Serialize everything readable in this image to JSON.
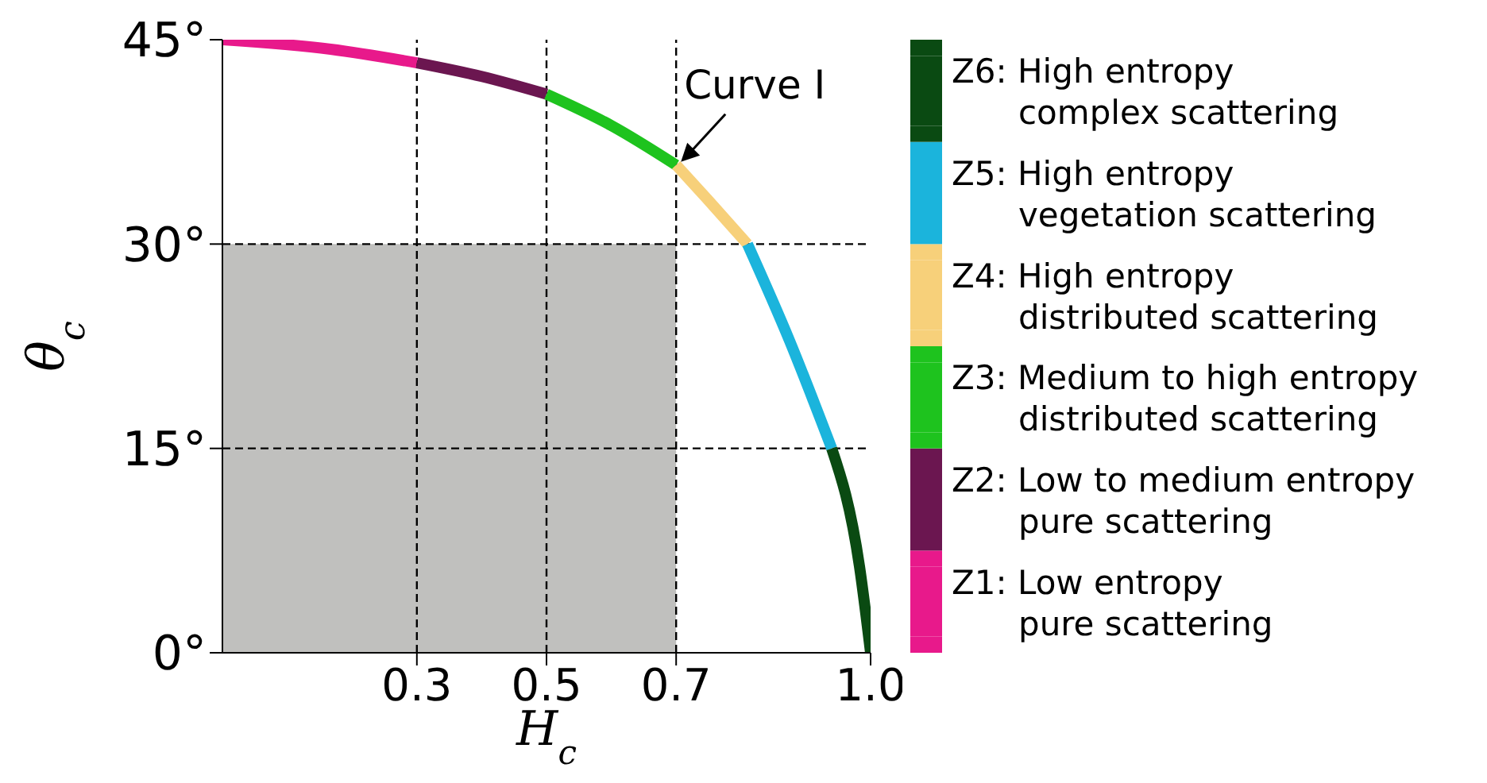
{
  "chart_data": {
    "type": "line",
    "xlabel": "H$_{c}$",
    "ylabel": "θ$_{c}$",
    "xlim": [
      0,
      1
    ],
    "ylim": [
      0,
      45
    ],
    "xticks": [
      0.3,
      0.5,
      0.7,
      {
        "value": 1,
        "label": "1.0"
      }
    ],
    "yticks": [
      {
        "value": 0,
        "label": "0°"
      },
      {
        "value": 15,
        "label": "15°"
      },
      {
        "value": 30,
        "label": "30°"
      },
      {
        "value": 45,
        "label": "45°"
      }
    ],
    "legend": "right",
    "series": [
      {
        "name": "Z1: Low entropy\npure scattering",
        "color": "#e8198b",
        "x": [
          0,
          0.167,
          0.3
        ],
        "values": [
          45,
          44.3,
          43.3
        ]
      },
      {
        "name": "Z2: Low to medium entropy\npure scattering",
        "color": "#6b1650",
        "x": [
          0.3,
          0.4,
          0.5
        ],
        "values": [
          43.3,
          42.3,
          41.0
        ]
      },
      {
        "name": "Z3: Medium to high entropy\ndistributed scattering",
        "color": "#1ec31e",
        "x": [
          0.5,
          0.6,
          0.7
        ],
        "values": [
          41.0,
          38.7,
          35.8
        ]
      },
      {
        "name": "Z4: High entropy\ndistributed scattering",
        "color": "#f7d07a",
        "x": [
          0.7,
          0.75,
          0.81
        ],
        "values": [
          35.8,
          33.2,
          30
        ]
      },
      {
        "name": "Z5: High entropy\nvegetation scattering",
        "color": "#1bb4dc",
        "x": [
          0.81,
          0.875,
          0.94
        ],
        "values": [
          30,
          22.9,
          15
        ]
      },
      {
        "name": "Z6: High entropy\ncomplex scattering",
        "color": "#0a4a12",
        "x": [
          0.94,
          0.983,
          1.0
        ],
        "values": [
          15,
          6.3,
          0
        ]
      },
      {
        "type": "area",
        "color": "#c0c0be",
        "x": [
          0,
          0.7
        ],
        "values": [
          30,
          30
        ]
      }
    ],
    "ref_lines": [
      {
        "axis": "x",
        "value": 0.3,
        "color": "#000000",
        "line_style": "dashed"
      },
      {
        "axis": "x",
        "value": 0.5,
        "color": "#000000",
        "line_style": "dashed"
      },
      {
        "axis": "x",
        "value": 0.7,
        "color": "#000000",
        "line_style": "dashed"
      },
      {
        "axis": "y",
        "value": 30,
        "color": "#000000",
        "line_style": "dashed"
      },
      {
        "axis": "y",
        "value": 15,
        "color": "#000000",
        "line_style": "dashed"
      }
    ],
    "annotations": [
      {
        "text": "Curve I",
        "x": 0.7,
        "y": 35.8
      }
    ]
  }
}
